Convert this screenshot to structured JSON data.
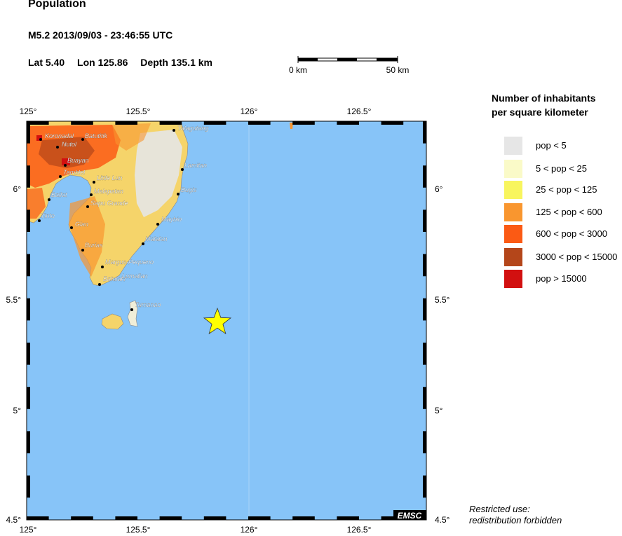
{
  "header": {
    "title": "Population",
    "event": "M5.2  2013/09/03 - 23:46:55 UTC",
    "lat": "Lat  5.40",
    "lon": "Lon 125.86",
    "depth": "Depth 135.1 km"
  },
  "scale_bar": {
    "start_label": "0 km",
    "end_label": "50 km"
  },
  "axes": {
    "x_ticks": [
      "125°",
      "125.5°",
      "126°",
      "126.5°"
    ],
    "y_ticks": [
      "6°",
      "5.5°",
      "5°",
      "4.5°"
    ]
  },
  "legend": {
    "title_line1": "Number of inhabitants",
    "title_line2": "per square kilometer",
    "items": [
      {
        "label": "pop < 5",
        "color": "#e6e6e6"
      },
      {
        "label": "5 < pop < 25",
        "color": "#fafac8"
      },
      {
        "label": "25 < pop < 125",
        "color": "#f8f55e"
      },
      {
        "label": "125 < pop < 600",
        "color": "#f9962f"
      },
      {
        "label": "600 < pop < 3000",
        "color": "#fb5a14"
      },
      {
        "label": "3000 < pop < 15000",
        "color": "#b4461a"
      },
      {
        "label": "pop > 15000",
        "color": "#d21010"
      }
    ]
  },
  "places": [
    "Koronadal",
    "Batutitik",
    "Nutol",
    "Talagutang",
    "Buayan",
    "Tamblel",
    "Lamitan",
    "Little Lun",
    "Bugis",
    "Bailat",
    "Malapatan",
    "Sapu Grande",
    "Tinto",
    "Glan",
    "Maybio",
    "Malalan",
    "Burias",
    "Margus-Pequeno",
    "Batulaki",
    "Lumalian",
    "Tumanao"
  ],
  "epicenter": {
    "lat": 5.4,
    "lon": 125.86,
    "color": "#ffff00"
  },
  "colors": {
    "sea": "#87c4f8"
  },
  "footer": {
    "logo": "EMSC",
    "restricted_line1": "Restricted use:",
    "restricted_line2": "redistribution forbidden"
  }
}
